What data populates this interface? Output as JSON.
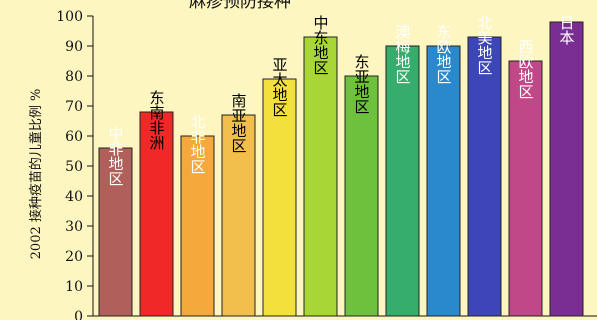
{
  "chart_data": {
    "type": "bar",
    "title": "麻疹预防接种",
    "ylabel": "2002 接种疫苗的儿童比例 %",
    "ylim": [
      0,
      100
    ],
    "yticks": [
      0,
      10,
      20,
      30,
      40,
      50,
      60,
      70,
      80,
      90,
      100
    ],
    "grid": false,
    "categories": [
      "中非地区",
      "东南非洲",
      "北非地区",
      "南亚地区",
      "亚太地区",
      "中东地区",
      "东亚地区",
      "澳梅地区",
      "东欧地区",
      "北美地区",
      "西欧地区",
      "日本"
    ],
    "values": [
      56,
      68,
      60,
      67,
      79,
      93,
      80,
      90,
      90,
      93,
      85,
      98
    ],
    "colors": [
      "#b0605a",
      "#f02828",
      "#f5a83c",
      "#f2bf4c",
      "#f2e03c",
      "#a7d636",
      "#6ec13c",
      "#36ad6c",
      "#2a88cc",
      "#3c46b6",
      "#c04888",
      "#7a2e94"
    ],
    "label_colors": [
      "#ffffff",
      "#000000",
      "#ffffff",
      "#000000",
      "#000000",
      "#000000",
      "#000000",
      "#ffffff",
      "#ffffff",
      "#ffffff",
      "#ffffff",
      "#ffffff"
    ]
  }
}
